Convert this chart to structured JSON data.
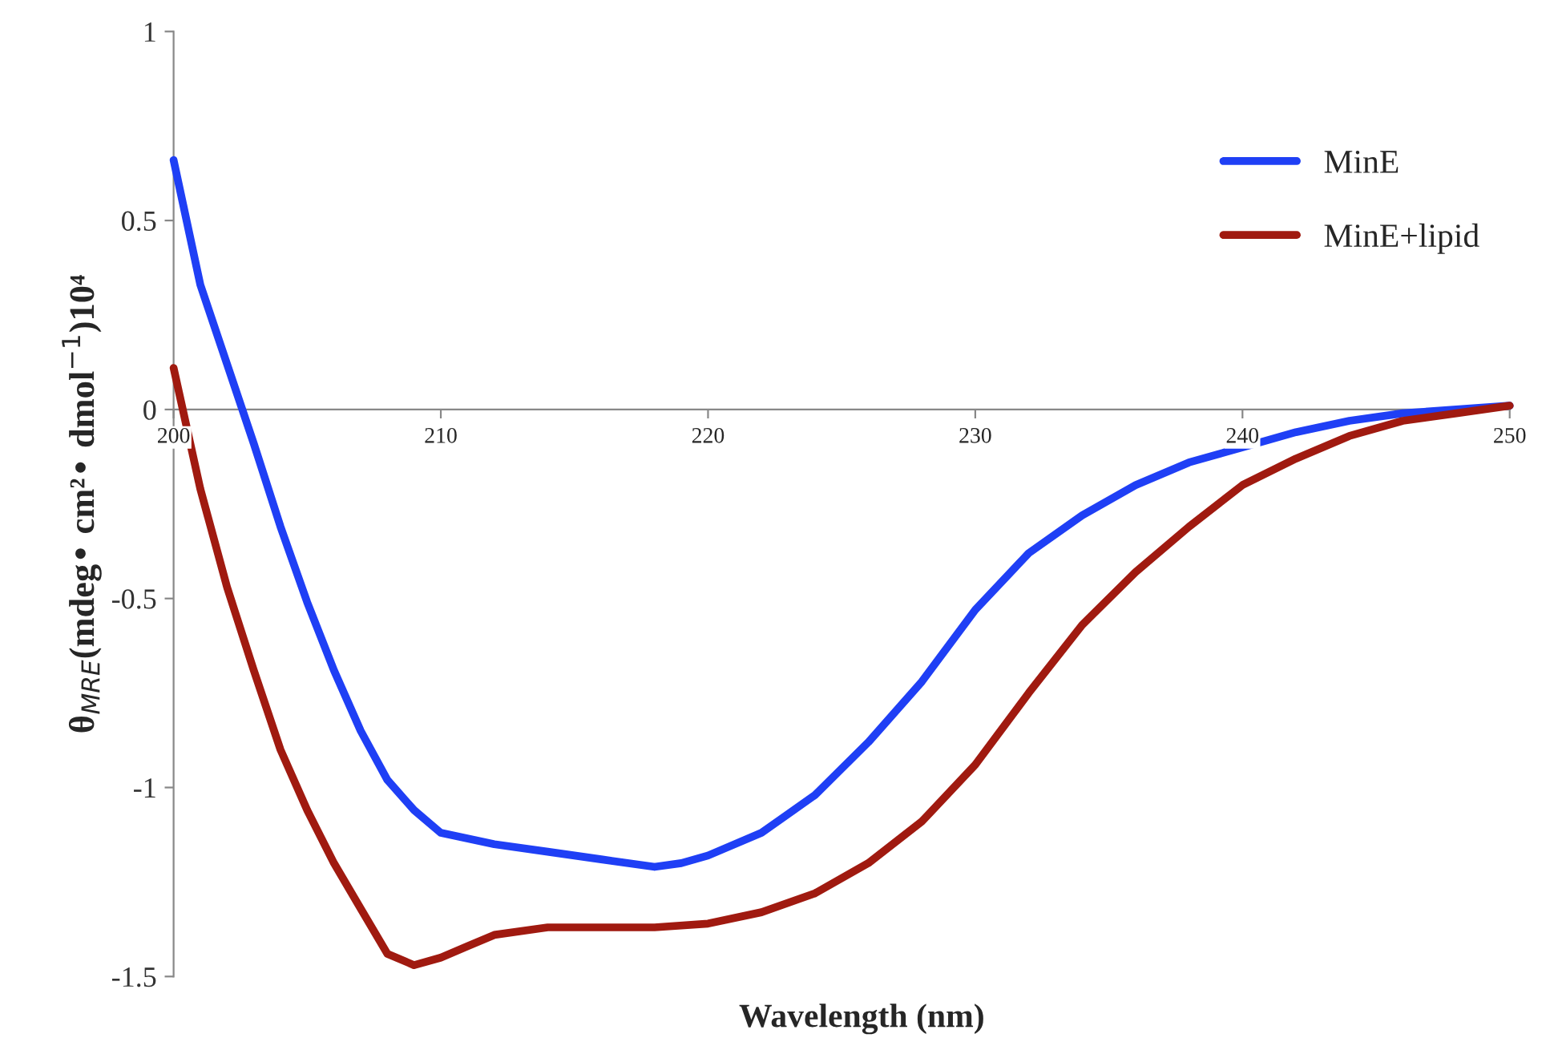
{
  "chart_data": {
    "type": "line",
    "xlabel": "Wavelength (nm)",
    "ylabel": "θ$_{MRE}$(mdeg• cm²• dmol$^{−1}$)10⁴",
    "xlim": [
      200,
      250
    ],
    "xticks": [
      200,
      210,
      220,
      230,
      240,
      250
    ],
    "ylim": [
      -1.5,
      1
    ],
    "yticks": [
      -1.5,
      -1,
      -0.5,
      0,
      0.5,
      1
    ],
    "grid": false,
    "legend": "right",
    "marker": "none",
    "line_style": "solid",
    "series": [
      {
        "name": "MinE",
        "color": "#1f3ff5",
        "x": [
          200,
          201,
          202,
          203,
          204,
          205,
          206,
          207,
          208,
          209,
          210,
          212,
          214,
          216,
          218,
          219,
          220,
          222,
          224,
          226,
          228,
          230,
          232,
          234,
          236,
          238,
          240,
          242,
          244,
          246,
          248,
          250
        ],
        "values": [
          0.66,
          0.33,
          0.12,
          -0.09,
          -0.31,
          -0.51,
          -0.69,
          -0.85,
          -0.98,
          -1.06,
          -1.12,
          -1.15,
          -1.17,
          -1.19,
          -1.21,
          -1.2,
          -1.18,
          -1.12,
          -1.02,
          -0.88,
          -0.72,
          -0.53,
          -0.38,
          -0.28,
          -0.2,
          -0.14,
          -0.1,
          -0.06,
          -0.03,
          -0.01,
          0,
          0.01
        ]
      },
      {
        "name": "MinE+lipid",
        "color": "#a01a10",
        "x": [
          200,
          201,
          202,
          203,
          204,
          205,
          206,
          207,
          208,
          209,
          210,
          211,
          212,
          214,
          216,
          218,
          220,
          222,
          224,
          226,
          228,
          230,
          232,
          234,
          236,
          238,
          240,
          242,
          244,
          246,
          248,
          250
        ],
        "values": [
          0.11,
          -0.21,
          -0.47,
          -0.69,
          -0.9,
          -1.06,
          -1.2,
          -1.32,
          -1.44,
          -1.47,
          -1.45,
          -1.42,
          -1.39,
          -1.37,
          -1.37,
          -1.37,
          -1.36,
          -1.33,
          -1.28,
          -1.2,
          -1.09,
          -0.94,
          -0.75,
          -0.57,
          -0.43,
          -0.31,
          -0.2,
          -0.13,
          -0.07,
          -0.03,
          -0.01,
          0.01
        ]
      }
    ]
  }
}
